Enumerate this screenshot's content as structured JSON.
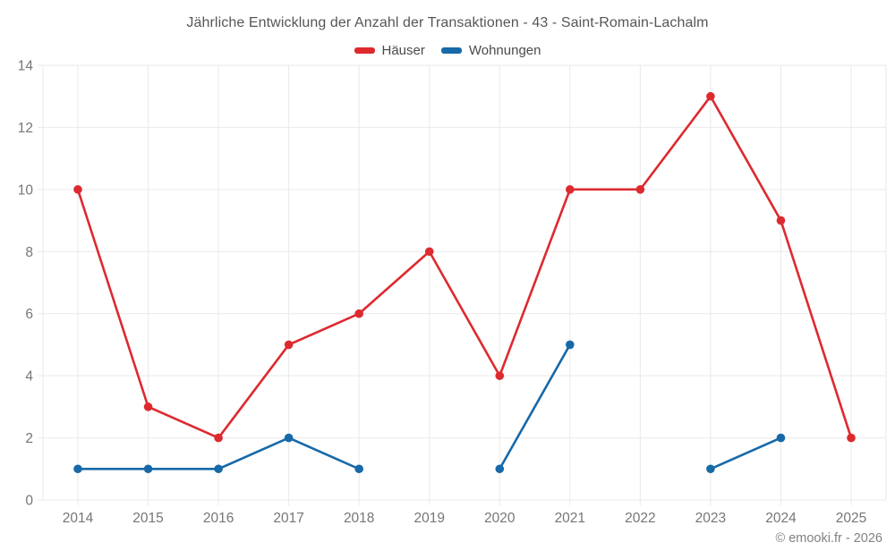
{
  "header": {
    "title": "Jährliche Entwicklung der Anzahl der Transaktionen - 43 - Saint-Romain-Lachalm"
  },
  "footer": {
    "attribution": "© emooki.fr - 2026"
  },
  "colors": {
    "hauser_red": "#dd2a2f",
    "wohnungen_blue": "#1769a8",
    "gridline": "#e9e9e9",
    "tick_text": "#767676"
  },
  "chart_data": {
    "type": "line",
    "title": "Jährliche Entwicklung der Anzahl der Transaktionen - 43 - Saint-Romain-Lachalm",
    "categories": [
      "2014",
      "2015",
      "2016",
      "2017",
      "2018",
      "2019",
      "2020",
      "2021",
      "2022",
      "2023",
      "2024",
      "2025"
    ],
    "series": [
      {
        "name": "Häuser",
        "color": "#dd2a2f",
        "values": [
          10,
          3,
          2,
          5,
          6,
          8,
          4,
          10,
          10,
          13,
          9,
          2
        ]
      },
      {
        "name": "Wohnungen",
        "color": "#1769a8",
        "values": [
          1,
          1,
          1,
          2,
          1,
          null,
          1,
          5,
          null,
          1,
          2,
          null
        ]
      }
    ],
    "xlabel": "",
    "ylabel": "",
    "ylim": [
      0,
      14
    ],
    "yticks": [
      0,
      2,
      4,
      6,
      8,
      10,
      12,
      14
    ],
    "grid": true,
    "legend_position": "top"
  }
}
